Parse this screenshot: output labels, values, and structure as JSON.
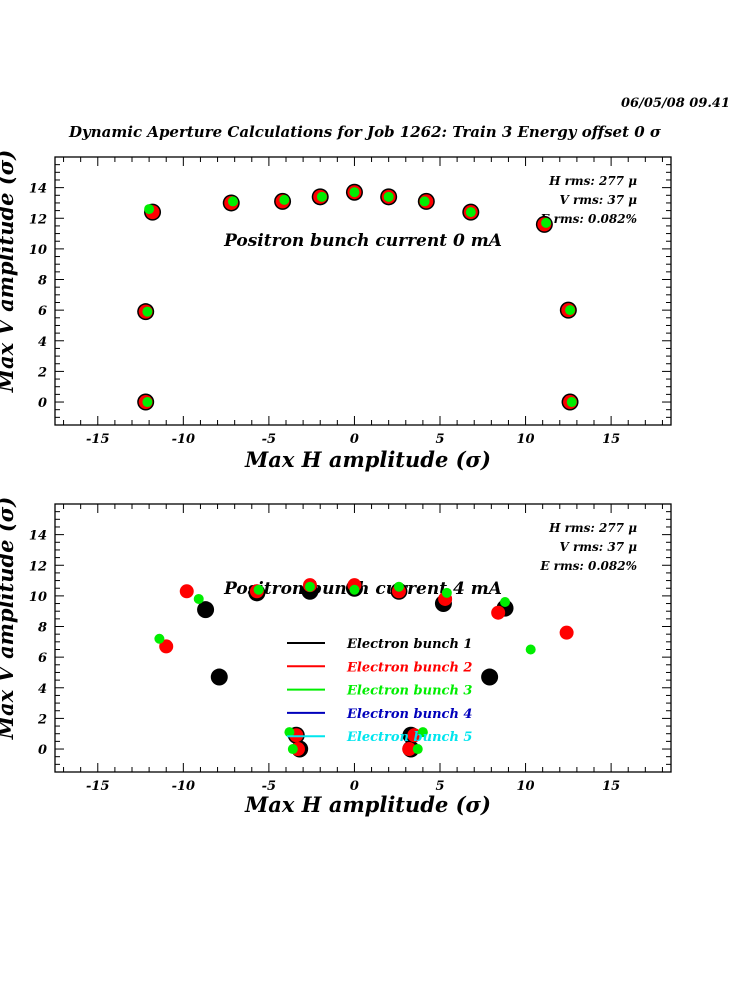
{
  "header": {
    "timestamp": "06/05/08   09.41",
    "title": "Dynamic Aperture Calculations for Job 1262:  Train 3   Energy offset  0 σ"
  },
  "legend": {
    "entries": [
      {
        "label": "Electron bunch 1",
        "color": "#000000"
      },
      {
        "label": "Electron bunch 2",
        "color": "#ff0000"
      },
      {
        "label": "Electron bunch 3",
        "color": "#00ee00"
      },
      {
        "label": "Electron bunch 4",
        "color": "#0000bb"
      },
      {
        "label": "Electron bunch 5",
        "color": "#00e5ee"
      }
    ]
  },
  "chart_data": [
    {
      "type": "scatter",
      "title": "Positron bunch current  0 mA",
      "xlabel": "Max H amplitude (σ)",
      "ylabel": "Max V amplitude (σ)",
      "xlim": [
        -17.5,
        18.5
      ],
      "ylim": [
        -1.5,
        16
      ],
      "xticks": [
        -15,
        -10,
        -5,
        0,
        5,
        10,
        15
      ],
      "yticks": [
        0,
        2,
        4,
        6,
        8,
        10,
        12,
        14
      ],
      "grid": false,
      "stats": [
        "H rms: 277 μ",
        "V rms: 37 μ",
        "E rms: 0.082%"
      ],
      "series": [
        {
          "color": "#000000",
          "size": "large",
          "points": [
            [
              -12.2,
              0
            ],
            [
              -12.2,
              5.9
            ],
            [
              -11.8,
              12.4
            ],
            [
              -7.2,
              13
            ],
            [
              -4.2,
              13.1
            ],
            [
              -2,
              13.4
            ],
            [
              0,
              13.7
            ],
            [
              2,
              13.4
            ],
            [
              4.2,
              13.1
            ],
            [
              6.8,
              12.4
            ],
            [
              11.1,
              11.6
            ],
            [
              12.5,
              6
            ],
            [
              12.6,
              0
            ]
          ]
        },
        {
          "color": "#ff0000",
          "size": "medium",
          "points": [
            [
              -12.2,
              0
            ],
            [
              -12.2,
              5.9
            ],
            [
              -11.8,
              12.4
            ],
            [
              -7.2,
              13
            ],
            [
              -4.2,
              13.1
            ],
            [
              -2,
              13.4
            ],
            [
              0,
              13.7
            ],
            [
              2,
              13.4
            ],
            [
              4.2,
              13.1
            ],
            [
              6.8,
              12.4
            ],
            [
              11.1,
              11.6
            ],
            [
              12.5,
              6
            ],
            [
              12.6,
              0
            ]
          ]
        },
        {
          "color": "#00ee00",
          "size": "small",
          "points": [
            [
              -12.1,
              0
            ],
            [
              -12.1,
              5.9
            ],
            [
              -12,
              12.6
            ],
            [
              -7.1,
              13.1
            ],
            [
              -4.1,
              13.2
            ],
            [
              -1.9,
              13.4
            ],
            [
              0,
              13.7
            ],
            [
              2,
              13.4
            ],
            [
              4.1,
              13.1
            ],
            [
              6.8,
              12.4
            ],
            [
              11.2,
              11.7
            ],
            [
              12.6,
              6
            ],
            [
              12.7,
              0
            ]
          ]
        }
      ]
    },
    {
      "type": "scatter",
      "title": "Positron bunch current  4 mA",
      "xlabel": "Max H amplitude (σ)",
      "ylabel": "Max V amplitude (σ)",
      "xlim": [
        -17.5,
        18.5
      ],
      "ylim": [
        -1.5,
        16
      ],
      "xticks": [
        -15,
        -10,
        -5,
        0,
        5,
        10,
        15
      ],
      "yticks": [
        0,
        2,
        4,
        6,
        8,
        10,
        12,
        14
      ],
      "grid": false,
      "stats": [
        "H rms: 277 μ",
        "V rms: 37 μ",
        "E rms: 0.082%"
      ],
      "series": [
        {
          "color": "#000000",
          "size": "large",
          "points": [
            [
              -8.7,
              9.1
            ],
            [
              -7.9,
              4.7
            ],
            [
              -5.7,
              10.2
            ],
            [
              -2.6,
              10.3
            ],
            [
              0,
              10.5
            ],
            [
              2.6,
              10.3
            ],
            [
              5.2,
              9.5
            ],
            [
              8.8,
              9.2
            ],
            [
              7.9,
              4.7
            ],
            [
              -3.2,
              0
            ],
            [
              -3.4,
              0.9
            ],
            [
              3.3,
              0
            ],
            [
              3.3,
              0.9
            ]
          ]
        },
        {
          "color": "#ff0000",
          "size": "medium",
          "points": [
            [
              -9.8,
              10.3
            ],
            [
              -11,
              6.7
            ],
            [
              -5.7,
              10.3
            ],
            [
              -2.6,
              10.7
            ],
            [
              0,
              10.7
            ],
            [
              2.6,
              10.3
            ],
            [
              5.3,
              9.8
            ],
            [
              8.4,
              8.9
            ],
            [
              12.4,
              7.6
            ],
            [
              -3.4,
              0.9
            ],
            [
              -3.3,
              0
            ],
            [
              3.5,
              0.9
            ],
            [
              3.2,
              0
            ]
          ]
        },
        {
          "color": "#00ee00",
          "size": "small",
          "points": [
            [
              -11.4,
              7.2
            ],
            [
              -9.1,
              9.8
            ],
            [
              -5.6,
              10.4
            ],
            [
              -2.6,
              10.6
            ],
            [
              0,
              10.4
            ],
            [
              2.6,
              10.6
            ],
            [
              5.4,
              10.2
            ],
            [
              8.8,
              9.6
            ],
            [
              10.3,
              6.5
            ],
            [
              -3.8,
              1.1
            ],
            [
              -3.6,
              0
            ],
            [
              4,
              1.1
            ],
            [
              3.7,
              0
            ]
          ]
        }
      ]
    }
  ]
}
